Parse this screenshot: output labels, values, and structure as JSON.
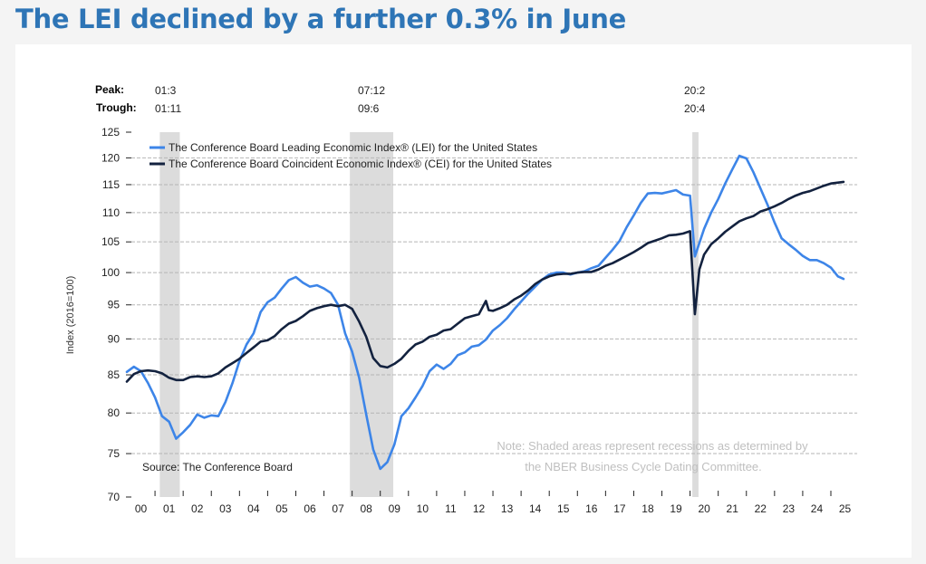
{
  "page": {
    "headline": "The LEI declined by a further 0.3% in June"
  },
  "chart_data": {
    "type": "line",
    "title": "The LEI declined by a further 0.3% in June",
    "xlabel": "",
    "ylabel": "Index (2016=100)",
    "yscale": "log",
    "ylim": [
      70,
      125
    ],
    "yticks": [
      70,
      75,
      80,
      85,
      90,
      95,
      100,
      105,
      110,
      115,
      120,
      125
    ],
    "xlim": [
      2000,
      2026
    ],
    "xtick_labels": [
      "00",
      "01",
      "02",
      "03",
      "04",
      "05",
      "06",
      "07",
      "08",
      "09",
      "10",
      "11",
      "12",
      "13",
      "14",
      "15",
      "16",
      "17",
      "18",
      "19",
      "20",
      "21",
      "22",
      "23",
      "24",
      "25"
    ],
    "grid": "horizontal-dashed",
    "legend_position": "top-left",
    "peak_label": "Peak:",
    "trough_label": "Trough:",
    "recessions": [
      {
        "peak": "01:3",
        "trough": "01:11",
        "start": 2001.17,
        "end": 2001.88
      },
      {
        "peak": "07:12",
        "trough": "09:6",
        "start": 2007.92,
        "end": 2009.46
      },
      {
        "peak": "20:2",
        "trough": "20:4",
        "start": 2020.08,
        "end": 2020.3
      }
    ],
    "source": "Source: The Conference Board",
    "note_line1": "Note: Shaded areas represent recessions as determined by",
    "note_line2": "the NBER Business Cycle Dating Committee.",
    "series": [
      {
        "name": "The Conference Board Leading Economic Index® (LEI) for the United States",
        "color": "#3d85e8",
        "x": [
          2000.0,
          2000.25,
          2000.5,
          2000.75,
          2001.0,
          2001.25,
          2001.5,
          2001.75,
          2002.0,
          2002.25,
          2002.5,
          2002.75,
          2003.0,
          2003.25,
          2003.5,
          2003.75,
          2004.0,
          2004.25,
          2004.5,
          2004.75,
          2005.0,
          2005.25,
          2005.5,
          2005.75,
          2006.0,
          2006.25,
          2006.5,
          2006.75,
          2007.0,
          2007.25,
          2007.5,
          2007.75,
          2008.0,
          2008.25,
          2008.5,
          2008.75,
          2009.0,
          2009.25,
          2009.5,
          2009.75,
          2010.0,
          2010.25,
          2010.5,
          2010.75,
          2011.0,
          2011.25,
          2011.5,
          2011.75,
          2012.0,
          2012.25,
          2012.5,
          2012.75,
          2013.0,
          2013.25,
          2013.5,
          2013.75,
          2014.0,
          2014.25,
          2014.5,
          2014.75,
          2015.0,
          2015.25,
          2015.5,
          2015.75,
          2016.0,
          2016.25,
          2016.5,
          2016.75,
          2017.0,
          2017.25,
          2017.5,
          2017.75,
          2018.0,
          2018.25,
          2018.5,
          2018.75,
          2019.0,
          2019.25,
          2019.5,
          2019.75,
          2020.0,
          2020.17,
          2020.5,
          2020.75,
          2021.0,
          2021.25,
          2021.5,
          2021.75,
          2022.0,
          2022.25,
          2022.5,
          2022.75,
          2023.0,
          2023.25,
          2023.5,
          2023.75,
          2024.0,
          2024.25,
          2024.5,
          2024.75,
          2025.0,
          2025.25,
          2025.45
        ],
        "values": [
          85.4,
          86.1,
          85.5,
          83.9,
          82.0,
          79.6,
          78.9,
          76.8,
          77.6,
          78.5,
          79.8,
          79.4,
          79.7,
          79.6,
          81.4,
          83.9,
          86.9,
          89.2,
          90.8,
          93.9,
          95.4,
          96.1,
          97.5,
          98.8,
          99.3,
          98.4,
          97.8,
          98.0,
          97.5,
          96.8,
          95.0,
          90.8,
          88.2,
          84.6,
          79.8,
          75.5,
          73.2,
          74.0,
          76.1,
          79.6,
          80.6,
          82.0,
          83.5,
          85.5,
          86.4,
          85.8,
          86.5,
          87.7,
          88.1,
          88.9,
          89.1,
          89.9,
          91.2,
          92.0,
          93.0,
          94.3,
          95.5,
          96.7,
          97.8,
          98.9,
          99.7,
          100.0,
          100.0,
          99.7,
          100.0,
          100.2,
          100.7,
          101.1,
          102.4,
          103.7,
          105.2,
          107.5,
          109.5,
          111.7,
          113.4,
          113.5,
          113.4,
          113.7,
          114.0,
          113.2,
          113.0,
          102.6,
          107.2,
          110.0,
          112.4,
          115.2,
          117.8,
          120.4,
          119.9,
          117.3,
          114.3,
          111.4,
          108.3,
          105.6,
          104.6,
          103.7,
          102.7,
          102.0,
          102.0,
          101.5,
          100.8,
          99.4,
          99.0
        ]
      },
      {
        "name": "The Conference Board Coincident Economic Index® (CEI) for the United States",
        "color": "#13223f",
        "x": [
          2000.0,
          2000.25,
          2000.5,
          2000.75,
          2001.0,
          2001.25,
          2001.5,
          2001.75,
          2002.0,
          2002.25,
          2002.5,
          2002.75,
          2003.0,
          2003.25,
          2003.5,
          2003.75,
          2004.0,
          2004.25,
          2004.5,
          2004.75,
          2005.0,
          2005.25,
          2005.5,
          2005.75,
          2006.0,
          2006.25,
          2006.5,
          2006.75,
          2007.0,
          2007.25,
          2007.5,
          2007.75,
          2008.0,
          2008.25,
          2008.5,
          2008.75,
          2009.0,
          2009.25,
          2009.5,
          2009.75,
          2010.0,
          2010.25,
          2010.5,
          2010.75,
          2011.0,
          2011.25,
          2011.5,
          2011.75,
          2012.0,
          2012.25,
          2012.5,
          2012.75,
          2012.85,
          2013.0,
          2013.25,
          2013.5,
          2013.75,
          2014.0,
          2014.25,
          2014.5,
          2014.75,
          2015.0,
          2015.25,
          2015.5,
          2015.75,
          2016.0,
          2016.25,
          2016.5,
          2016.75,
          2017.0,
          2017.25,
          2017.5,
          2017.75,
          2018.0,
          2018.25,
          2018.5,
          2018.75,
          2019.0,
          2019.25,
          2019.5,
          2019.75,
          2020.0,
          2020.17,
          2020.33,
          2020.5,
          2020.75,
          2021.0,
          2021.25,
          2021.5,
          2021.75,
          2022.0,
          2022.25,
          2022.5,
          2022.75,
          2023.0,
          2023.25,
          2023.5,
          2023.75,
          2024.0,
          2024.25,
          2024.5,
          2024.75,
          2025.0,
          2025.45
        ],
        "values": [
          84.1,
          85.1,
          85.5,
          85.6,
          85.5,
          85.2,
          84.6,
          84.3,
          84.3,
          84.7,
          84.8,
          84.7,
          84.8,
          85.2,
          86.0,
          86.6,
          87.2,
          88.0,
          88.8,
          89.6,
          89.8,
          90.4,
          91.4,
          92.2,
          92.6,
          93.3,
          94.1,
          94.5,
          94.8,
          95.0,
          94.8,
          95.0,
          94.4,
          92.5,
          90.3,
          87.3,
          86.2,
          86.0,
          86.5,
          87.2,
          88.3,
          89.2,
          89.6,
          90.3,
          90.6,
          91.2,
          91.4,
          92.2,
          93.0,
          93.3,
          93.6,
          95.6,
          94.2,
          94.1,
          94.5,
          95.0,
          95.8,
          96.4,
          97.2,
          98.2,
          98.9,
          99.4,
          99.7,
          99.8,
          99.8,
          100.0,
          100.1,
          100.1,
          100.5,
          101.1,
          101.5,
          102.1,
          102.7,
          103.3,
          104.0,
          104.8,
          105.2,
          105.6,
          106.1,
          106.2,
          106.4,
          106.8,
          93.6,
          100.5,
          102.9,
          104.6,
          105.6,
          106.7,
          107.6,
          108.5,
          109.0,
          109.4,
          110.2,
          110.6,
          111.1,
          111.7,
          112.4,
          113.0,
          113.5,
          113.8,
          114.3,
          114.8,
          115.2,
          115.5
        ]
      }
    ]
  }
}
